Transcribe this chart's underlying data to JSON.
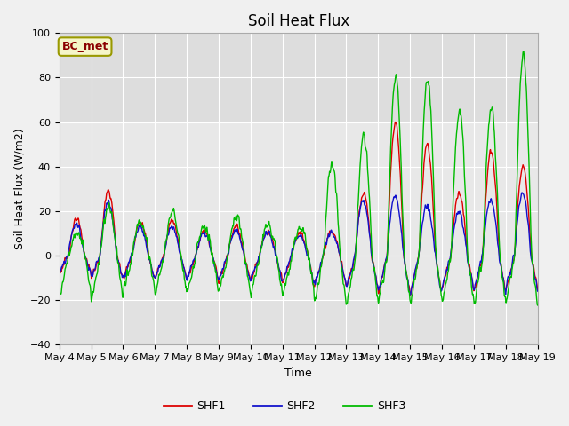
{
  "title": "Soil Heat Flux",
  "xlabel": "Time",
  "ylabel": "Soil Heat Flux (W/m2)",
  "ylim": [
    -40,
    100
  ],
  "n_days": 15,
  "pts_per_day": 96,
  "series_labels": [
    "SHF1",
    "SHF2",
    "SHF3"
  ],
  "series_colors": [
    "#dd0000",
    "#1111cc",
    "#00bb00"
  ],
  "legend_label": "BC_met",
  "tick_labels": [
    "May 4",
    "May 5",
    "May 6",
    "May 7",
    "May 8",
    "May 9",
    "May 10",
    "May 11",
    "May 12",
    "May 13",
    "May 14",
    "May 15",
    "May 16",
    "May 17",
    "May 18",
    "May 19"
  ],
  "yticks": [
    -40,
    -20,
    0,
    20,
    40,
    60,
    80,
    100
  ],
  "title_fontsize": 12,
  "axis_label_fontsize": 9,
  "tick_fontsize": 8,
  "fig_bg": "#f0f0f0",
  "plot_bg": "#e8e8e8",
  "band_color": "#d8d8d8",
  "line_width": 1.0
}
